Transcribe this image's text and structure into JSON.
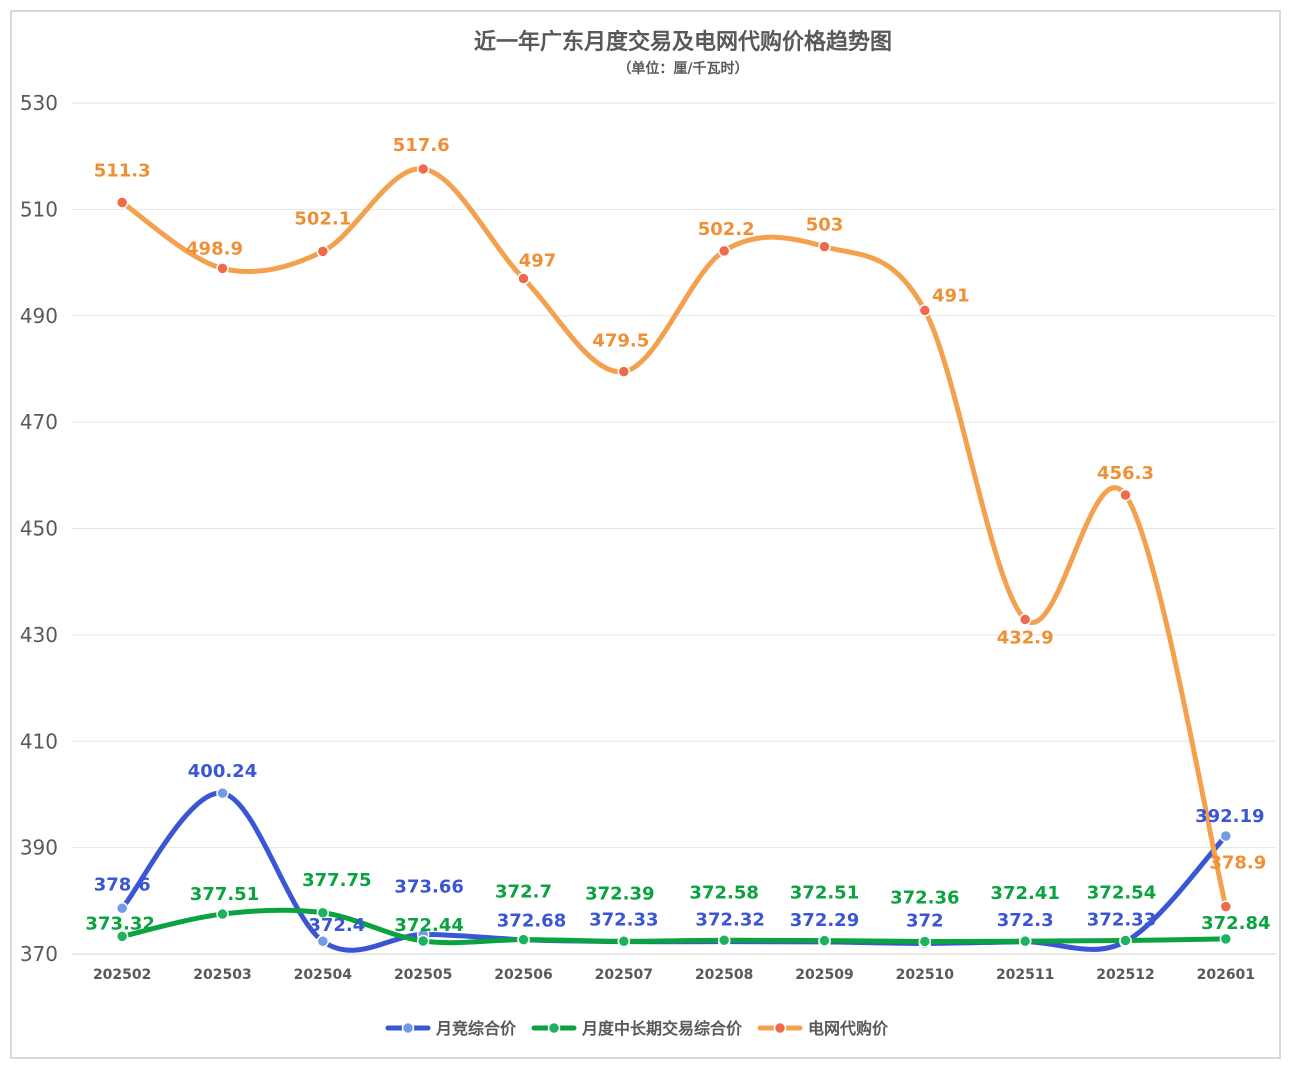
{
  "chart_data": {
    "type": "line",
    "title": "近一年广东月度交易及电网代购价格趋势图",
    "subtitle": "（单位：厘/千瓦时）",
    "categories": [
      "202502",
      "202503",
      "202504",
      "202505",
      "202506",
      "202507",
      "202508",
      "202509",
      "202510",
      "202511",
      "202512",
      "202601"
    ],
    "ylim": [
      370,
      530
    ],
    "yticks": [
      370,
      390,
      410,
      430,
      450,
      470,
      490,
      510,
      530
    ],
    "grid": true,
    "legend_position": "bottom",
    "series": [
      {
        "name": "月竞综合价",
        "color": "#3a56d4",
        "marker": "#6f9be8",
        "values": [
          378.6,
          400.24,
          372.4,
          373.66,
          372.68,
          372.33,
          372.32,
          372.29,
          372,
          372.3,
          372.33,
          392.19
        ],
        "labels": [
          "378.6",
          "400.24",
          "372.4",
          "373.66",
          "372.68",
          "372.33",
          "372.32",
          "372.29",
          "372",
          "372.3",
          "372.33",
          "392.19"
        ]
      },
      {
        "name": "月度中长期交易综合价",
        "color": "#0aa33f",
        "marker": "#1bb360",
        "values": [
          373.32,
          377.51,
          377.75,
          372.44,
          372.7,
          372.39,
          372.58,
          372.51,
          372.36,
          372.41,
          372.54,
          372.84
        ],
        "labels": [
          "373.32",
          "377.51",
          "377.75",
          "372.44",
          "372.7",
          "372.39",
          "372.58",
          "372.51",
          "372.36",
          "372.41",
          "372.54",
          "372.84"
        ]
      },
      {
        "name": "电网代购价",
        "color": "#f4a14f",
        "marker": "#f0694a",
        "labelColor": "#ef9036",
        "values": [
          511.3,
          498.9,
          502.1,
          517.6,
          497,
          479.5,
          502.2,
          503,
          491,
          432.9,
          456.3,
          378.9
        ],
        "labels": [
          "511.3",
          "498.9",
          "502.1",
          "517.6",
          "497",
          "479.5",
          "502.2",
          "503",
          "491",
          "432.9",
          "456.3",
          "378.9"
        ]
      }
    ]
  }
}
